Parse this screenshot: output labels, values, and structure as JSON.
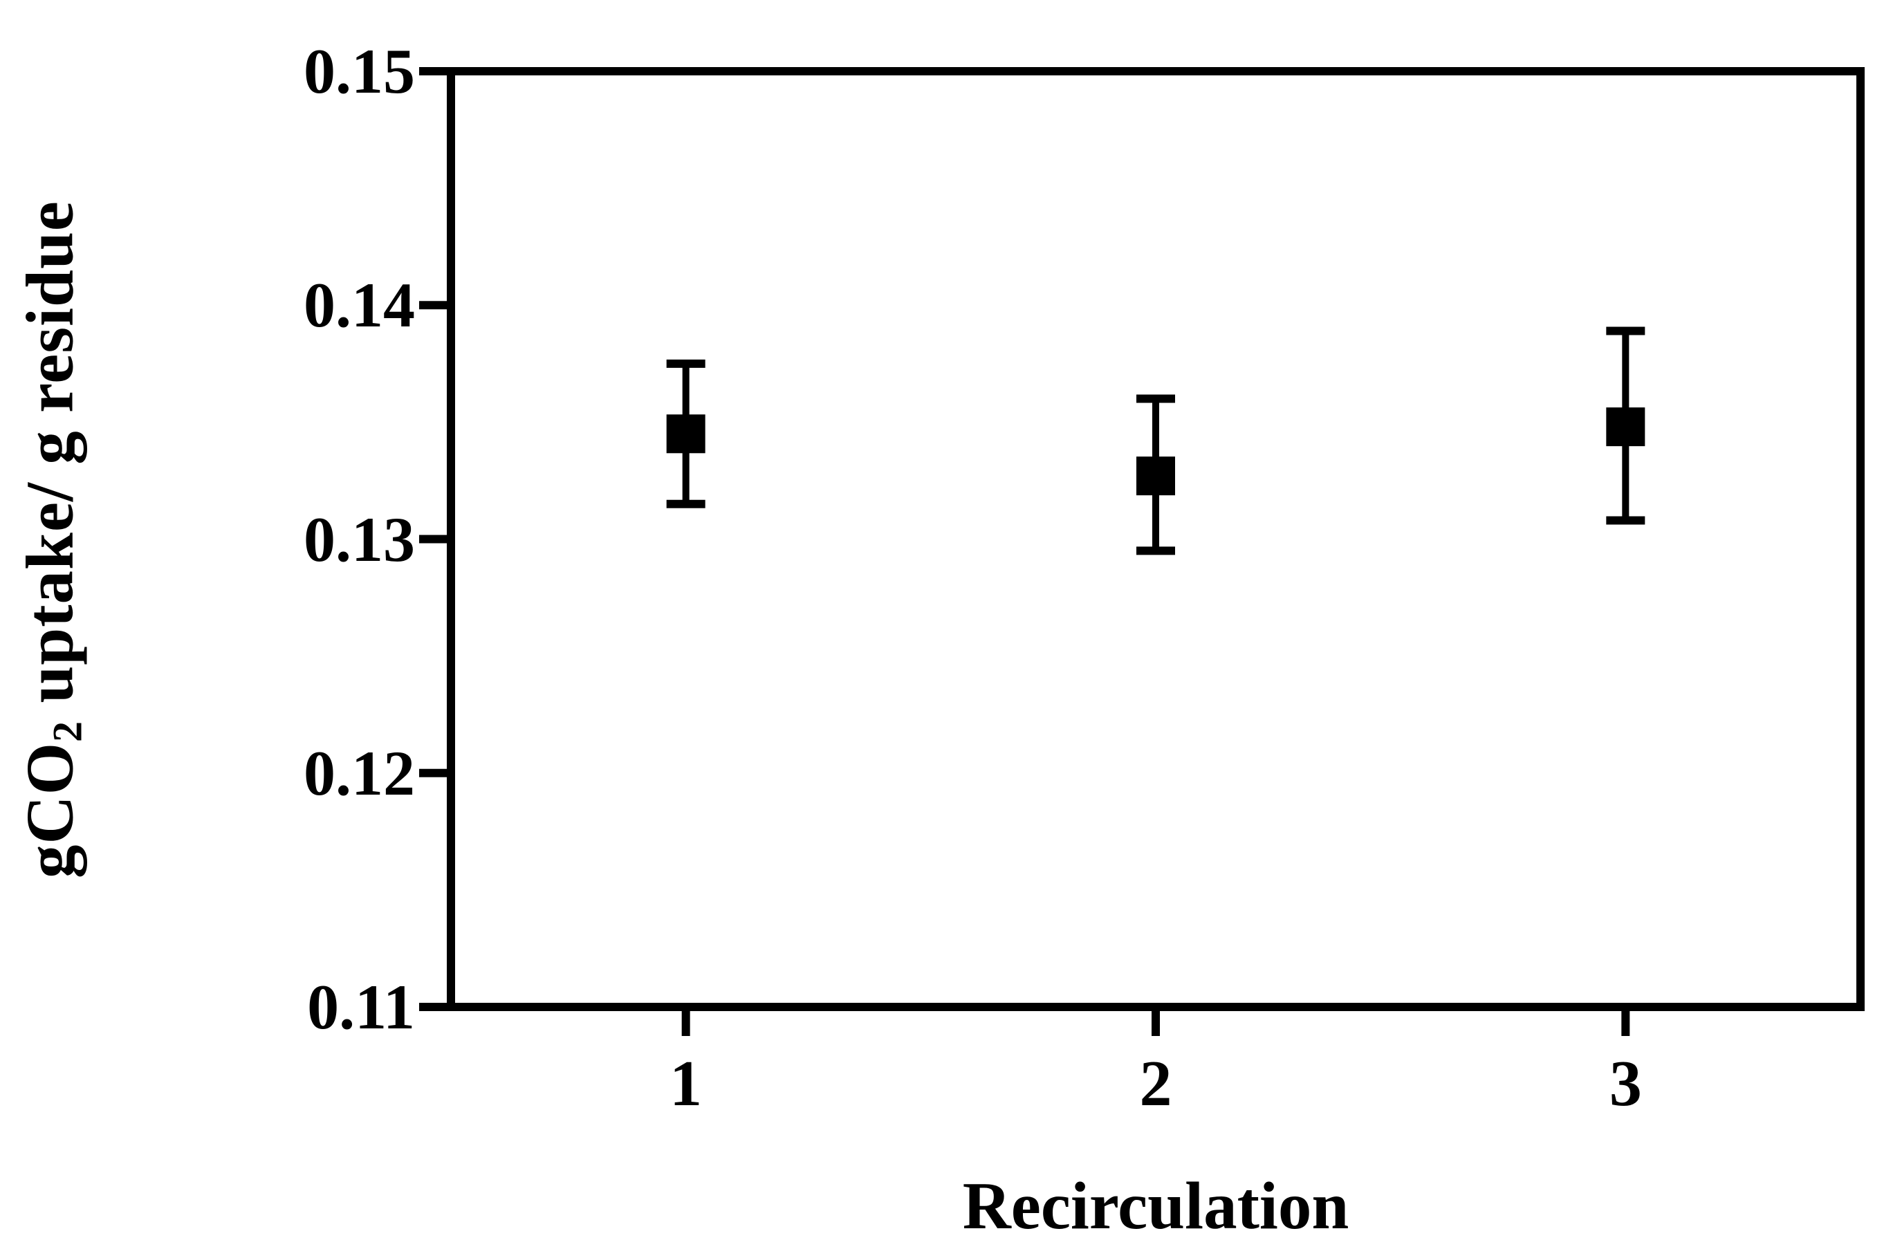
{
  "chart_data": {
    "type": "scatter",
    "title": "",
    "legend": false,
    "grid": false,
    "background_color": "#ffffff",
    "line_color": "#000000",
    "x_axis": {
      "label": "Recirculation",
      "tick_labels": [
        "1",
        "2",
        "3"
      ],
      "tick_values": [
        1,
        2,
        3
      ],
      "min": 0.5,
      "max": 3.5
    },
    "y_axis": {
      "label_prefix": "gCO",
      "label_subscript": "2",
      "label_suffix": " uptake/ g residue",
      "tick_labels": [
        "0.15",
        "0.14",
        "0.13",
        "0.12",
        "0.11"
      ],
      "tick_values": [
        0.15,
        0.14,
        0.13,
        0.12,
        0.11
      ],
      "min": 0.11,
      "max": 0.15
    },
    "series": [
      {
        "marker": "filled-square",
        "color": "#000000",
        "x": [
          1,
          2,
          3
        ],
        "y": [
          0.1345,
          0.1327,
          0.1348
        ],
        "err_plus": [
          0.003,
          0.0033,
          0.0041
        ],
        "err_minus": [
          0.003,
          0.0032,
          0.004
        ]
      }
    ]
  }
}
